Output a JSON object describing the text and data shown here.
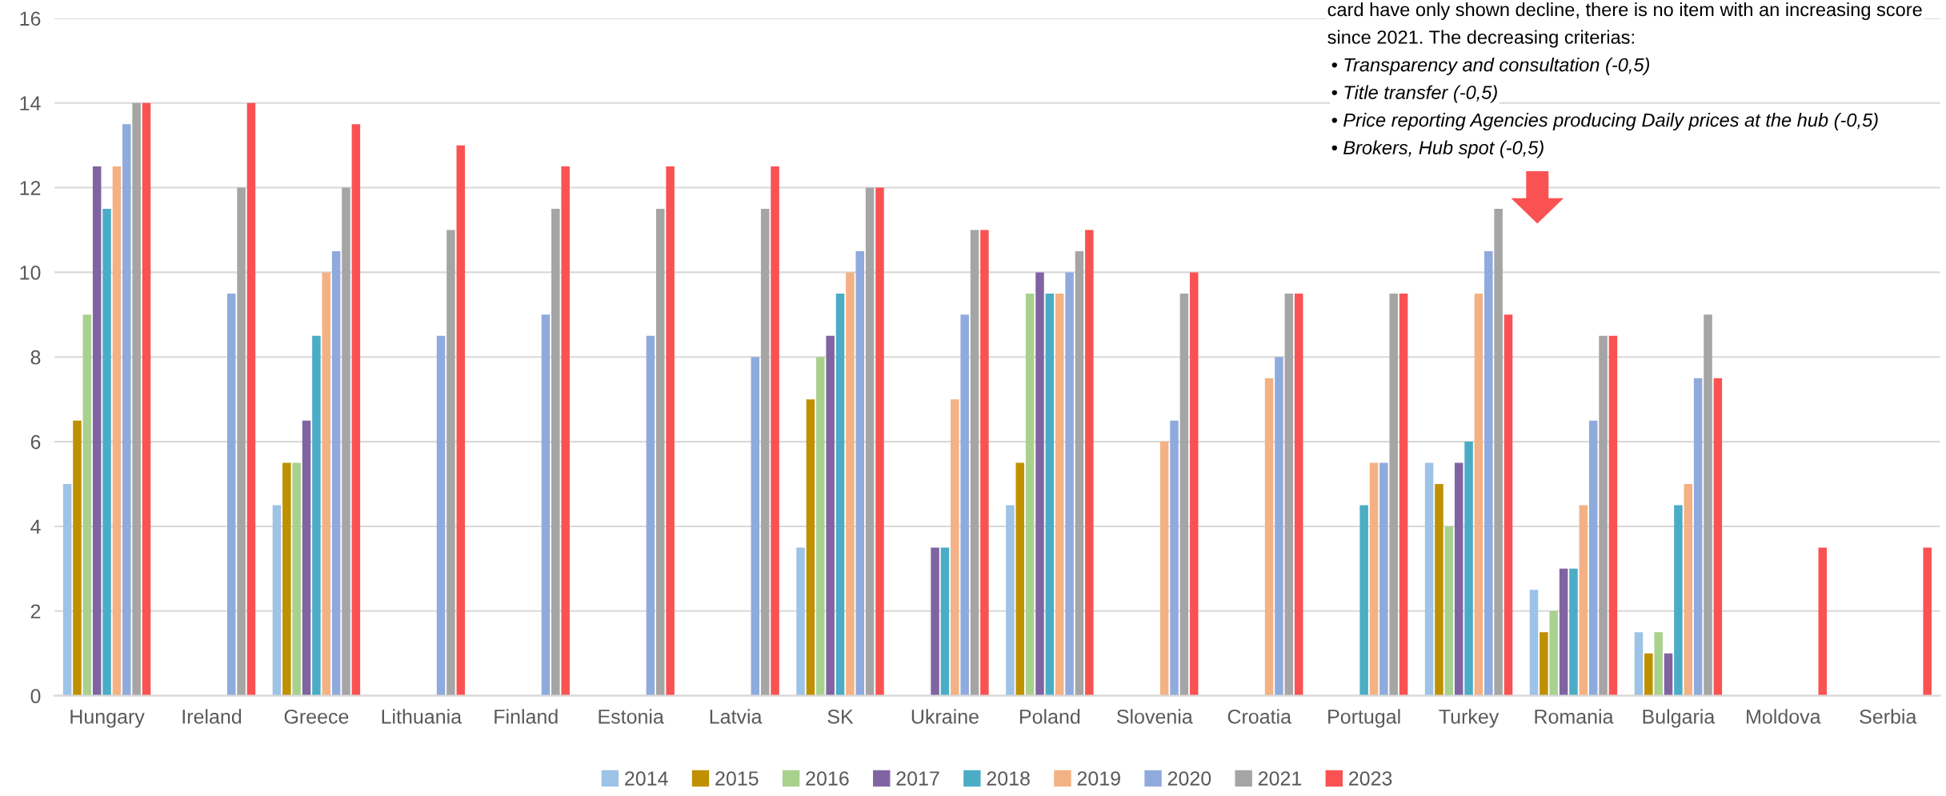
{
  "chart_data": {
    "type": "bar",
    "categories": [
      "Hungary",
      "Ireland",
      "Greece",
      "Lithuania",
      "Finland",
      "Estonia",
      "Latvia",
      "SK",
      "Ukraine",
      "Poland",
      "Slovenia",
      "Croatia",
      "Portugal",
      "Turkey",
      "Romania",
      "Bulgaria",
      "Moldova",
      "Serbia"
    ],
    "series": [
      {
        "name": "2014",
        "color": "#9dc3e6",
        "values": [
          5,
          null,
          4.5,
          null,
          null,
          null,
          null,
          3.5,
          null,
          4.5,
          null,
          null,
          null,
          5.5,
          2.5,
          1.5,
          null,
          null
        ]
      },
      {
        "name": "2015",
        "color": "#bf9000",
        "values": [
          6.5,
          null,
          5.5,
          null,
          null,
          null,
          null,
          7,
          null,
          5.5,
          null,
          null,
          null,
          5,
          1.5,
          1,
          null,
          null
        ]
      },
      {
        "name": "2016",
        "color": "#a9d18e",
        "values": [
          9,
          null,
          5.5,
          null,
          null,
          null,
          null,
          8,
          null,
          9.5,
          null,
          null,
          null,
          4,
          2,
          1.5,
          null,
          null
        ]
      },
      {
        "name": "2017",
        "color": "#8064a2",
        "values": [
          12.5,
          null,
          6.5,
          null,
          null,
          null,
          null,
          8.5,
          3.5,
          10,
          null,
          null,
          null,
          5.5,
          3,
          1,
          null,
          null
        ]
      },
      {
        "name": "2018",
        "color": "#4bacc6",
        "values": [
          11.5,
          null,
          8.5,
          null,
          null,
          null,
          null,
          9.5,
          3.5,
          9.5,
          null,
          null,
          4.5,
          6,
          3,
          4.5,
          null,
          null
        ]
      },
      {
        "name": "2019",
        "color": "#f4b183",
        "values": [
          12.5,
          null,
          10,
          null,
          null,
          null,
          null,
          10,
          7,
          9.5,
          6,
          7.5,
          5.5,
          9.5,
          4.5,
          5,
          null,
          null
        ]
      },
      {
        "name": "2020",
        "color": "#8faadc",
        "values": [
          13.5,
          9.5,
          10.5,
          8.5,
          9,
          8.5,
          8,
          10.5,
          9,
          10,
          6.5,
          8,
          5.5,
          10.5,
          6.5,
          7.5,
          null,
          null
        ]
      },
      {
        "name": "2021",
        "color": "#a5a5a5",
        "values": [
          14,
          12,
          12,
          11,
          11.5,
          11.5,
          11.5,
          12,
          11,
          10.5,
          9.5,
          9.5,
          9.5,
          11.5,
          8.5,
          9,
          null,
          null
        ]
      },
      {
        "name": "2023",
        "color": "#fa5252",
        "values": [
          14,
          14,
          13.5,
          13,
          12.5,
          12.5,
          12.5,
          12,
          11,
          11,
          10,
          9.5,
          9.5,
          9,
          8.5,
          7.5,
          3.5,
          3.5
        ]
      }
    ],
    "ylim": [
      0,
      16
    ],
    "yticks": [
      0,
      2,
      4,
      6,
      8,
      10,
      12,
      14,
      16
    ],
    "grid": "y",
    "legend": "bottom",
    "annotations": [
      "card have only shown decline, there is no item with an increasing score\nsince 2021. The decreasing criterias:",
      "• Transparency and consultation (-0,5)",
      "• Title transfer (-0,5)",
      "• Price reporting Agencies producing Daily prices at the hub (-0,5)",
      "• Brokers, Hub spot (-0,5)"
    ]
  }
}
